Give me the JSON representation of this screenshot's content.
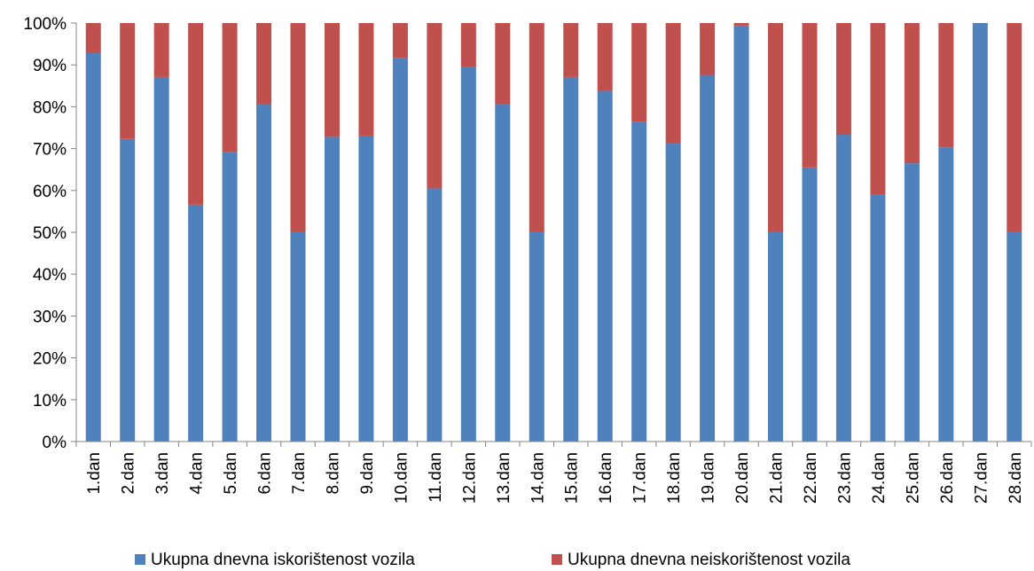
{
  "chart_data": {
    "type": "bar",
    "stacked": true,
    "percent_stacked": true,
    "categories": [
      "1.dan",
      "2.dan",
      "3.dan",
      "4.dan",
      "5.dan",
      "6.dan",
      "7.dan",
      "8.dan",
      "9.dan",
      "10.dan",
      "11.dan",
      "12.dan",
      "13.dan",
      "14.dan",
      "15.dan",
      "16.dan",
      "17.dan",
      "18.dan",
      "19.dan",
      "20.dan",
      "21.dan",
      "22.dan",
      "23.dan",
      "24.dan",
      "25.dan",
      "26.dan",
      "27.dan",
      "28.dan"
    ],
    "series": [
      {
        "name": "Ukupna dnevna iskorištenost vozila",
        "color": "#4F81BD",
        "values": [
          92.8,
          72.3,
          87.1,
          56.6,
          69.1,
          80.5,
          50.1,
          72.8,
          73.1,
          91.6,
          60.5,
          89.5,
          80.6,
          50.1,
          87.1,
          83.8,
          76.4,
          71.4,
          87.6,
          99.4,
          50.1,
          65.5,
          73.3,
          59.1,
          66.5,
          70.3,
          100.0,
          50.1
        ]
      },
      {
        "name": "Ukupna dnevna neiskorištenost vozila",
        "color": "#C0504D",
        "values": [
          7.2,
          27.7,
          12.9,
          43.4,
          30.9,
          19.5,
          49.9,
          27.2,
          26.9,
          8.4,
          39.5,
          10.5,
          19.4,
          49.9,
          12.9,
          16.2,
          23.6,
          28.6,
          12.4,
          0.6,
          49.9,
          34.5,
          26.7,
          40.9,
          33.5,
          29.7,
          0.0,
          49.9
        ]
      }
    ],
    "y_ticks": [
      "0%",
      "10%",
      "20%",
      "30%",
      "40%",
      "50%",
      "60%",
      "70%",
      "80%",
      "90%",
      "100%"
    ],
    "ylim": [
      0,
      100
    ],
    "title": "",
    "xlabel": "",
    "ylabel": "",
    "grid": false,
    "legend_position": "bottom"
  }
}
